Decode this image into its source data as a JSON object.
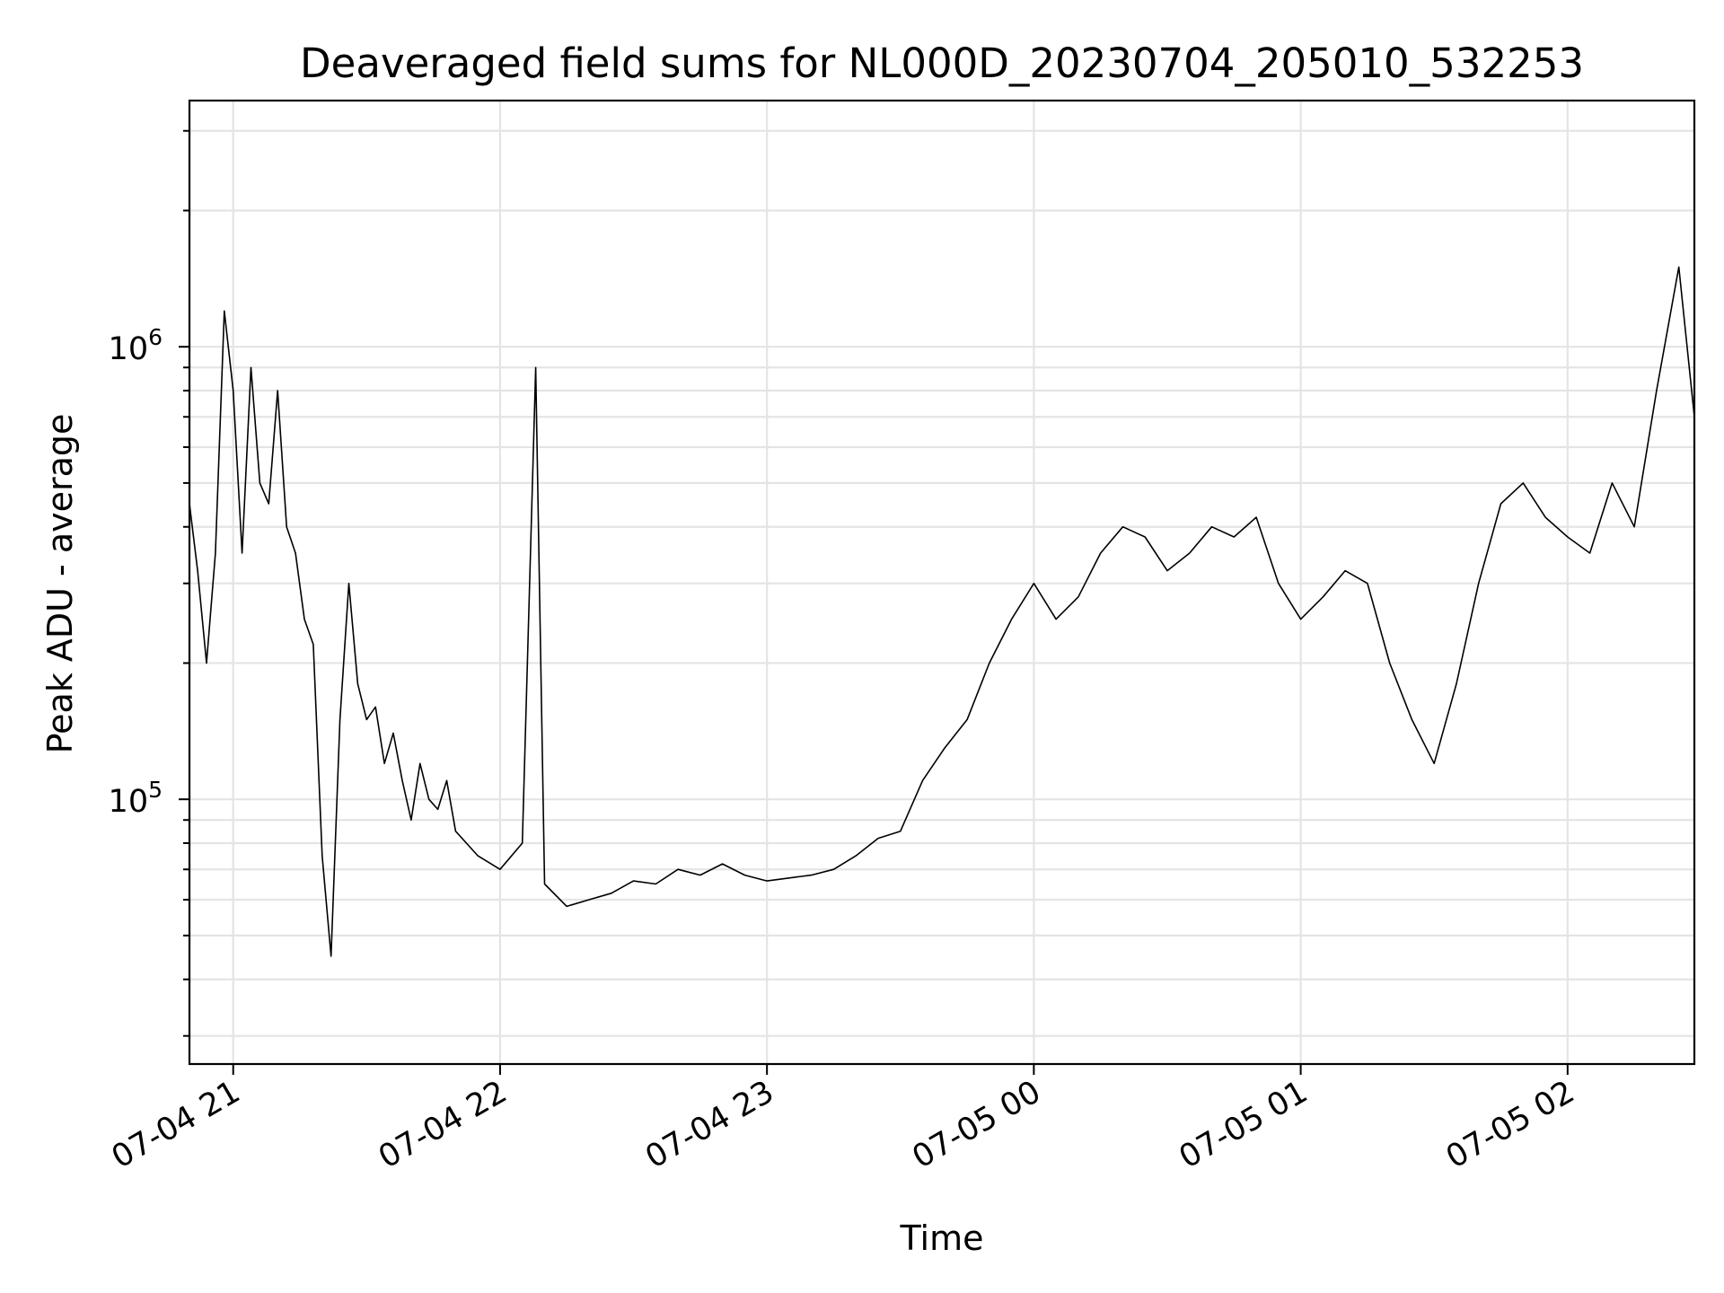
{
  "chart_data": {
    "type": "line",
    "title": "Deaveraged field sums for NL000D_20230704_205010_532253",
    "xlabel": "Time",
    "ylabel": "Peak ADU - average",
    "x_range": [
      "2023-07-04T20:50:10",
      "2023-07-05T02:28:30"
    ],
    "ylim": [
      26000,
      3500000
    ],
    "yscale": "log",
    "grid": true,
    "line_color": "#000000",
    "x_ticks": [
      {
        "value": "2023-07-04T21:00:00",
        "label": "07-04 21"
      },
      {
        "value": "2023-07-04T22:00:00",
        "label": "07-04 22"
      },
      {
        "value": "2023-07-04T23:00:00",
        "label": "07-04 23"
      },
      {
        "value": "2023-07-05T00:00:00",
        "label": "07-05 00"
      },
      {
        "value": "2023-07-05T01:00:00",
        "label": "07-05 01"
      },
      {
        "value": "2023-07-05T02:00:00",
        "label": "07-05 02"
      }
    ],
    "y_ticks": [
      {
        "value": 100000,
        "base": "10",
        "exp": "5"
      },
      {
        "value": 1000000,
        "base": "10",
        "exp": "6"
      }
    ],
    "series": [
      {
        "x": [
          "2023-07-04T20:50:10",
          "2023-07-04T20:52:00",
          "2023-07-04T20:54:00",
          "2023-07-04T20:56:00",
          "2023-07-04T20:58:00",
          "2023-07-04T21:00:00",
          "2023-07-04T21:02:00",
          "2023-07-04T21:04:00",
          "2023-07-04T21:06:00",
          "2023-07-04T21:08:00",
          "2023-07-04T21:10:00",
          "2023-07-04T21:12:00",
          "2023-07-04T21:14:00",
          "2023-07-04T21:16:00",
          "2023-07-04T21:18:00",
          "2023-07-04T21:20:00",
          "2023-07-04T21:22:00",
          "2023-07-04T21:24:00",
          "2023-07-04T21:26:00",
          "2023-07-04T21:28:00",
          "2023-07-04T21:30:00",
          "2023-07-04T21:32:00",
          "2023-07-04T21:34:00",
          "2023-07-04T21:36:00",
          "2023-07-04T21:38:00",
          "2023-07-04T21:40:00",
          "2023-07-04T21:42:00",
          "2023-07-04T21:44:00",
          "2023-07-04T21:46:00",
          "2023-07-04T21:48:00",
          "2023-07-04T21:50:00",
          "2023-07-04T21:55:00",
          "2023-07-04T22:00:00",
          "2023-07-04T22:05:00",
          "2023-07-04T22:08:00",
          "2023-07-04T22:10:00",
          "2023-07-04T22:15:00",
          "2023-07-04T22:20:00",
          "2023-07-04T22:25:00",
          "2023-07-04T22:30:00",
          "2023-07-04T22:35:00",
          "2023-07-04T22:40:00",
          "2023-07-04T22:45:00",
          "2023-07-04T22:50:00",
          "2023-07-04T22:55:00",
          "2023-07-04T23:00:00",
          "2023-07-04T23:05:00",
          "2023-07-04T23:10:00",
          "2023-07-04T23:15:00",
          "2023-07-04T23:20:00",
          "2023-07-04T23:25:00",
          "2023-07-04T23:30:00",
          "2023-07-04T23:35:00",
          "2023-07-04T23:40:00",
          "2023-07-04T23:45:00",
          "2023-07-04T23:50:00",
          "2023-07-04T23:55:00",
          "2023-07-05T00:00:00",
          "2023-07-05T00:05:00",
          "2023-07-05T00:10:00",
          "2023-07-05T00:15:00",
          "2023-07-05T00:20:00",
          "2023-07-05T00:25:00",
          "2023-07-05T00:30:00",
          "2023-07-05T00:35:00",
          "2023-07-05T00:40:00",
          "2023-07-05T00:45:00",
          "2023-07-05T00:50:00",
          "2023-07-05T00:55:00",
          "2023-07-05T01:00:00",
          "2023-07-05T01:05:00",
          "2023-07-05T01:10:00",
          "2023-07-05T01:15:00",
          "2023-07-05T01:20:00",
          "2023-07-05T01:25:00",
          "2023-07-05T01:30:00",
          "2023-07-05T01:35:00",
          "2023-07-05T01:40:00",
          "2023-07-05T01:45:00",
          "2023-07-05T01:50:00",
          "2023-07-05T01:55:00",
          "2023-07-05T02:00:00",
          "2023-07-05T02:05:00",
          "2023-07-05T02:10:00",
          "2023-07-05T02:15:00",
          "2023-07-05T02:20:00",
          "2023-07-05T02:25:00",
          "2023-07-05T02:28:30"
        ],
        "y": [
          450000,
          320000,
          200000,
          350000,
          1200000,
          800000,
          350000,
          900000,
          500000,
          450000,
          800000,
          400000,
          350000,
          250000,
          220000,
          75000,
          45000,
          150000,
          300000,
          180000,
          150000,
          160000,
          120000,
          140000,
          110000,
          90000,
          120000,
          100000,
          95000,
          110000,
          85000,
          75000,
          70000,
          80000,
          900000,
          65000,
          58000,
          60000,
          62000,
          66000,
          65000,
          70000,
          68000,
          72000,
          68000,
          66000,
          67000,
          68000,
          70000,
          75000,
          82000,
          85000,
          110000,
          130000,
          150000,
          200000,
          250000,
          300000,
          250000,
          280000,
          350000,
          400000,
          380000,
          320000,
          350000,
          400000,
          380000,
          420000,
          300000,
          250000,
          280000,
          320000,
          300000,
          200000,
          150000,
          120000,
          180000,
          300000,
          450000,
          500000,
          420000,
          380000,
          350000,
          500000,
          400000,
          800000,
          1500000,
          700000
        ]
      }
    ]
  }
}
